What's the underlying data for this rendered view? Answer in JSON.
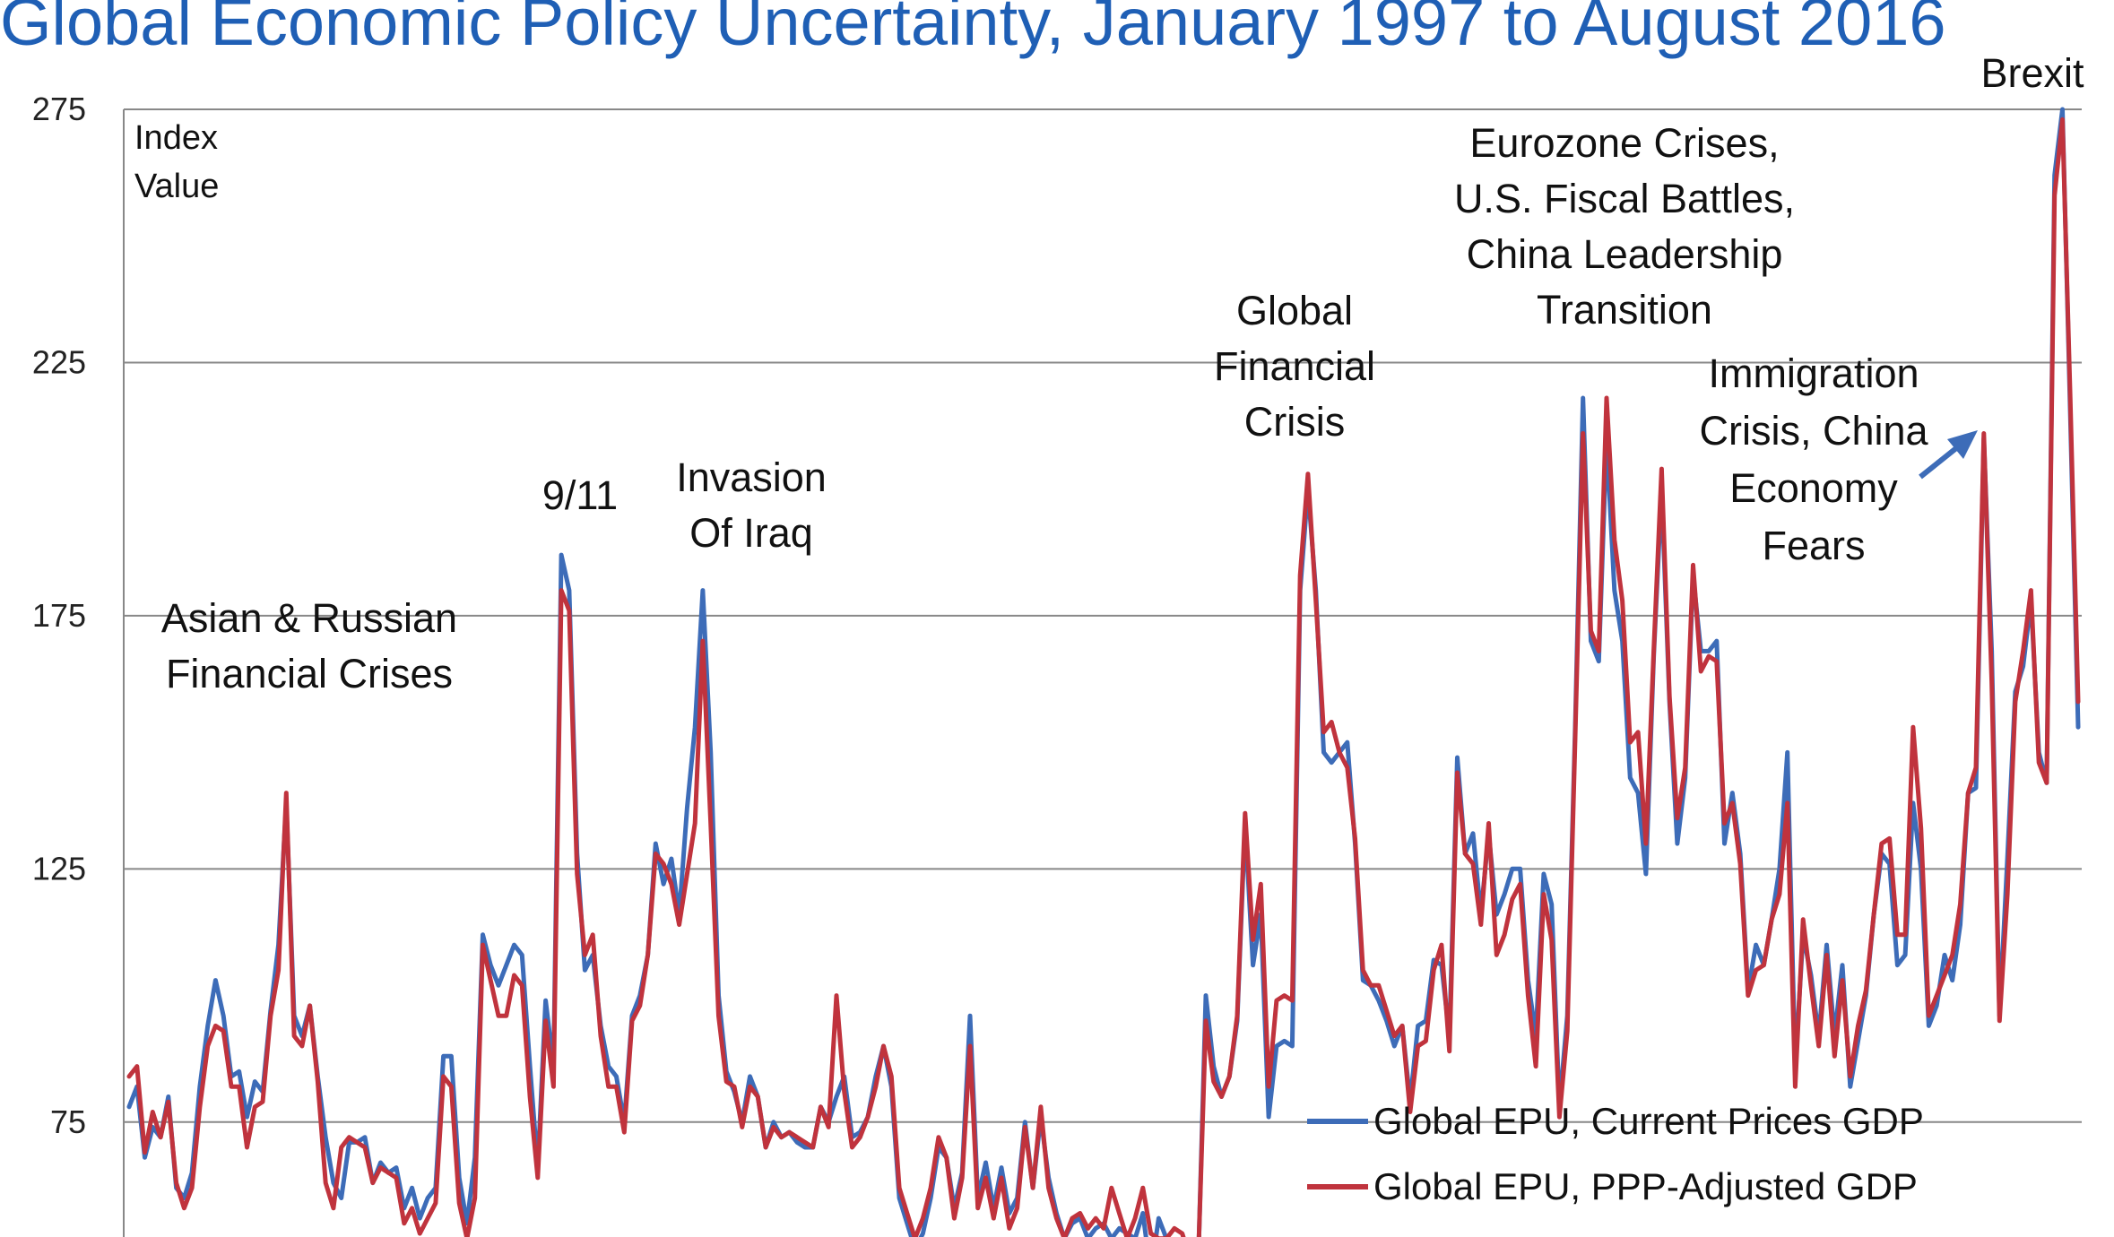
{
  "chart_data": {
    "type": "line",
    "title": "Global Economic Policy Uncertainty, January 1997 to August 2016",
    "ylabel": "Index\nValue",
    "xlabel": "",
    "ylim": [
      50,
      275
    ],
    "yticks": [
      75,
      125,
      175,
      225,
      275
    ],
    "grid": true,
    "legend_position": "bottom-right",
    "x_start": "1997-01",
    "x_end": "2016-08",
    "series": [
      {
        "name": "Global EPU, Current Prices GDP",
        "color": "#3d6cb8",
        "values": [
          78,
          82,
          68,
          74,
          72,
          80,
          62,
          60,
          65,
          82,
          94,
          103,
          96,
          84,
          85,
          76,
          83,
          81,
          97,
          110,
          138,
          96,
          92,
          98,
          84,
          72,
          63,
          60,
          71,
          71,
          72,
          63,
          67,
          65,
          66,
          58,
          62,
          56,
          60,
          62,
          88,
          88,
          64,
          55,
          68,
          112,
          106,
          102,
          106,
          110,
          108,
          86,
          66,
          99,
          86,
          187,
          180,
          128,
          105,
          108,
          94,
          86,
          84,
          75,
          96,
          100,
          108,
          130,
          122,
          127,
          116,
          137,
          153,
          180,
          148,
          100,
          85,
          81,
          75,
          84,
          80,
          70,
          75,
          72,
          73,
          71,
          70,
          70,
          78,
          75,
          80,
          84,
          72,
          73,
          76,
          84,
          90,
          82,
          60,
          55,
          50,
          53,
          60,
          70,
          68,
          58,
          65,
          96,
          60,
          67,
          58,
          66,
          57,
          60,
          75,
          62,
          76,
          64,
          57,
          52,
          55,
          56,
          52,
          54,
          55,
          52,
          54,
          53,
          52,
          57,
          45,
          56,
          52,
          50,
          48,
          48,
          45,
          100,
          86,
          80,
          84,
          95,
          134,
          106,
          116,
          76,
          90,
          91,
          90,
          180,
          200,
          180,
          148,
          146,
          148,
          150,
          130,
          103,
          102,
          99,
          95,
          90,
          94,
          79,
          94,
          95,
          107,
          106,
          92,
          147,
          128,
          132,
          116,
          132,
          116,
          120,
          125,
          125,
          103,
          92,
          124,
          118,
          78,
          96,
          153,
          218,
          170,
          166,
          210,
          180,
          170,
          143,
          140,
          124,
          167,
          200,
          158,
          130,
          143,
          183,
          168,
          168,
          170,
          130,
          140,
          128,
          101,
          110,
          106,
          115,
          125,
          148,
          86,
          112,
          104,
          92,
          110,
          92,
          106,
          82,
          91,
          100,
          116,
          128,
          126,
          106,
          108,
          138,
          125,
          94,
          98,
          108,
          103,
          114,
          140,
          141,
          210,
          168,
          96,
          127,
          160,
          165,
          178,
          148,
          142,
          262,
          275,
          215,
          153
        ]
      },
      {
        "name": "Global EPU, PPP-Adjusted GDP",
        "color": "#c0333d",
        "values": [
          84,
          86,
          69,
          77,
          72,
          79,
          63,
          58,
          62,
          78,
          90,
          94,
          93,
          82,
          82,
          70,
          78,
          79,
          96,
          105,
          140,
          92,
          90,
          98,
          83,
          63,
          58,
          70,
          72,
          71,
          70,
          63,
          66,
          65,
          64,
          55,
          58,
          53,
          56,
          59,
          84,
          82,
          59,
          52,
          60,
          110,
          103,
          96,
          96,
          104,
          102,
          80,
          64,
          95,
          82,
          180,
          176,
          124,
          108,
          112,
          92,
          82,
          82,
          73,
          95,
          98,
          108,
          128,
          126,
          122,
          114,
          124,
          134,
          170,
          134,
          96,
          83,
          82,
          74,
          82,
          80,
          70,
          74,
          72,
          73,
          72,
          71,
          70,
          78,
          74,
          100,
          81,
          70,
          72,
          76,
          82,
          90,
          84,
          62,
          57,
          52,
          56,
          62,
          72,
          68,
          56,
          64,
          90,
          58,
          64,
          56,
          64,
          54,
          58,
          74,
          62,
          78,
          62,
          56,
          52,
          56,
          57,
          54,
          56,
          54,
          62,
          57,
          52,
          56,
          62,
          53,
          52,
          52,
          54,
          53,
          48,
          46,
          95,
          83,
          80,
          84,
          96,
          136,
          111,
          122,
          82,
          99,
          100,
          99,
          183,
          203,
          178,
          152,
          154,
          148,
          145,
          131,
          105,
          102,
          102,
          97,
          92,
          94,
          77,
          90,
          91,
          105,
          110,
          89,
          144,
          128,
          126,
          114,
          134,
          108,
          112,
          119,
          122,
          100,
          86,
          120,
          111,
          76,
          93,
          151,
          211,
          172,
          168,
          218,
          190,
          178,
          150,
          152,
          130,
          168,
          204,
          159,
          135,
          145,
          185,
          164,
          167,
          166,
          134,
          138,
          126,
          100,
          105,
          106,
          115,
          120,
          138,
          82,
          115,
          102,
          90,
          108,
          88,
          103,
          84,
          94,
          101,
          116,
          130,
          131,
          112,
          112,
          153,
          133,
          96,
          100,
          104,
          108,
          118,
          140,
          145,
          211,
          162,
          95,
          120,
          158,
          168,
          180,
          146,
          142,
          258,
          273,
          218,
          158
        ]
      }
    ],
    "annotations": [
      {
        "lines": [
          "Asian & Russian",
          "Financial Crises"
        ]
      },
      {
        "lines": [
          "9/11"
        ]
      },
      {
        "lines": [
          "Invasion",
          "Of Iraq"
        ]
      },
      {
        "lines": [
          "Global",
          "Financial",
          "Crisis"
        ]
      },
      {
        "lines": [
          "Eurozone Crises,",
          "U.S. Fiscal Battles,",
          "China Leadership",
          "Transition"
        ]
      },
      {
        "lines": [
          "Immigration",
          "Crisis, China",
          "Economy",
          "Fears"
        ]
      },
      {
        "lines": [
          "Brexit"
        ]
      }
    ]
  }
}
